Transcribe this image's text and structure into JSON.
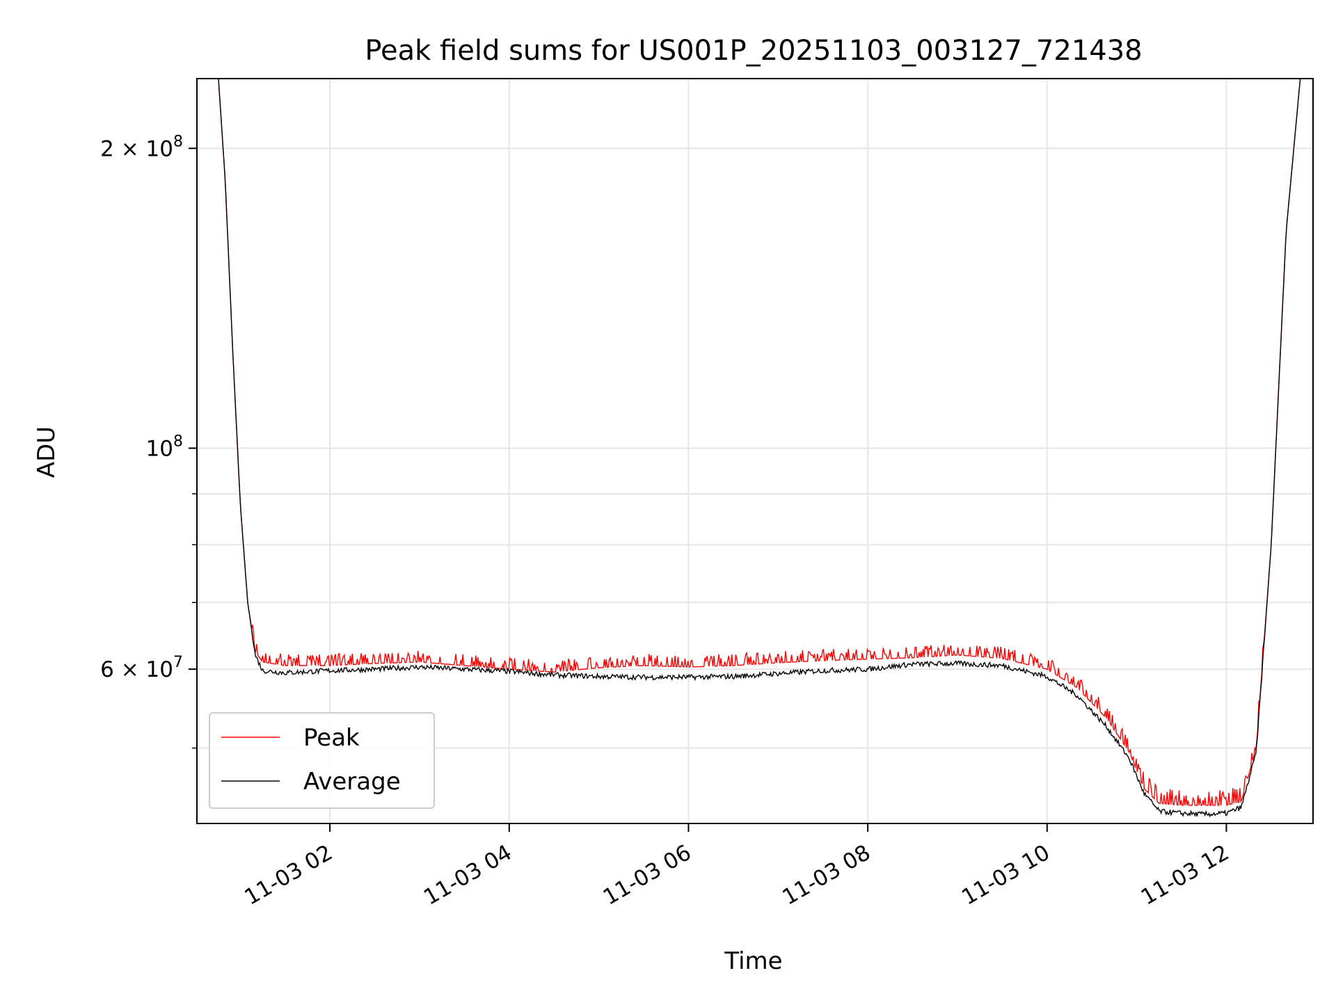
{
  "chart_data": {
    "type": "line",
    "title": "Peak field sums for US001P_20251103_003127_721438",
    "xlabel": "Time",
    "ylabel": "ADU",
    "yscale": "log",
    "grid": true,
    "legend_placement": "lower-left",
    "x_range": [
      "2025-11-03 00:31",
      "2025-11-03 12:58"
    ],
    "ylim": [
      42000000,
      235000000
    ],
    "x_ticks": [
      {
        "value": "2025-11-03 02:00",
        "label": "11-03 02"
      },
      {
        "value": "2025-11-03 04:00",
        "label": "11-03 04"
      },
      {
        "value": "2025-11-03 06:00",
        "label": "11-03 06"
      },
      {
        "value": "2025-11-03 08:00",
        "label": "11-03 08"
      },
      {
        "value": "2025-11-03 10:00",
        "label": "11-03 10"
      },
      {
        "value": "2025-11-03 12:00",
        "label": "11-03 12"
      }
    ],
    "y_ticks_major": [
      {
        "value": 200000000,
        "label": "2 × 10",
        "exponent": "8"
      },
      {
        "value": 100000000,
        "label": "10",
        "exponent": "8"
      },
      {
        "value": 60000000,
        "label": "6 × 10",
        "exponent": "7"
      }
    ],
    "y_ticks_minor": [
      50000000,
      70000000,
      80000000,
      90000000
    ],
    "series": [
      {
        "name": "Peak",
        "color": "#ff0000",
        "x": [
          "2025-11-03 00:45",
          "2025-11-03 00:50",
          "2025-11-03 00:55",
          "2025-11-03 01:00",
          "2025-11-03 01:05",
          "2025-11-03 01:10",
          "2025-11-03 01:15",
          "2025-11-03 01:30",
          "2025-11-03 02:00",
          "2025-11-03 02:30",
          "2025-11-03 03:00",
          "2025-11-03 03:30",
          "2025-11-03 04:00",
          "2025-11-03 04:30",
          "2025-11-03 05:00",
          "2025-11-03 05:30",
          "2025-11-03 06:00",
          "2025-11-03 06:30",
          "2025-11-03 07:00",
          "2025-11-03 07:30",
          "2025-11-03 08:00",
          "2025-11-03 08:30",
          "2025-11-03 09:00",
          "2025-11-03 09:30",
          "2025-11-03 10:00",
          "2025-11-03 10:20",
          "2025-11-03 10:40",
          "2025-11-03 10:55",
          "2025-11-03 11:05",
          "2025-11-03 11:15",
          "2025-11-03 11:30",
          "2025-11-03 11:45",
          "2025-11-03 12:00",
          "2025-11-03 12:10",
          "2025-11-03 12:20",
          "2025-11-03 12:30",
          "2025-11-03 12:40",
          "2025-11-03 12:50"
        ],
        "y": [
          240000000,
          185000000,
          125000000,
          88000000,
          70000000,
          62500000,
          61000000,
          60500000,
          60500000,
          60800000,
          61000000,
          60500000,
          60000000,
          59600000,
          60200000,
          60500000,
          60300000,
          60500000,
          60900000,
          61200000,
          61400000,
          61600000,
          62000000,
          61500000,
          60000000,
          57500000,
          53500000,
          49500000,
          45500000,
          44000000,
          43800000,
          43800000,
          43800000,
          44200000,
          50000000,
          80000000,
          165000000,
          240000000
        ],
        "spikes_above_average_adu": 1200000
      },
      {
        "name": "Average",
        "color": "#000000",
        "x": [
          "2025-11-03 00:45",
          "2025-11-03 00:50",
          "2025-11-03 00:55",
          "2025-11-03 01:00",
          "2025-11-03 01:05",
          "2025-11-03 01:10",
          "2025-11-03 01:15",
          "2025-11-03 01:30",
          "2025-11-03 02:00",
          "2025-11-03 02:30",
          "2025-11-03 03:00",
          "2025-11-03 03:30",
          "2025-11-03 04:00",
          "2025-11-03 04:30",
          "2025-11-03 05:00",
          "2025-11-03 05:30",
          "2025-11-03 06:00",
          "2025-11-03 06:30",
          "2025-11-03 07:00",
          "2025-11-03 07:30",
          "2025-11-03 08:00",
          "2025-11-03 08:30",
          "2025-11-03 09:00",
          "2025-11-03 09:30",
          "2025-11-03 10:00",
          "2025-11-03 10:20",
          "2025-11-03 10:40",
          "2025-11-03 10:55",
          "2025-11-03 11:05",
          "2025-11-03 11:15",
          "2025-11-03 11:30",
          "2025-11-03 11:45",
          "2025-11-03 12:00",
          "2025-11-03 12:10",
          "2025-11-03 12:20",
          "2025-11-03 12:30",
          "2025-11-03 12:40",
          "2025-11-03 12:50"
        ],
        "y": [
          240000000,
          185000000,
          125000000,
          88000000,
          70000000,
          62000000,
          59800000,
          59500000,
          59800000,
          60000000,
          60300000,
          60000000,
          59700000,
          59200000,
          59000000,
          58900000,
          58900000,
          59000000,
          59400000,
          59800000,
          60000000,
          60700000,
          60800000,
          60500000,
          59000000,
          56500000,
          52500000,
          48800000,
          45000000,
          43200000,
          43000000,
          42900000,
          43000000,
          43600000,
          49500000,
          80000000,
          165000000,
          240000000
        ]
      }
    ]
  }
}
